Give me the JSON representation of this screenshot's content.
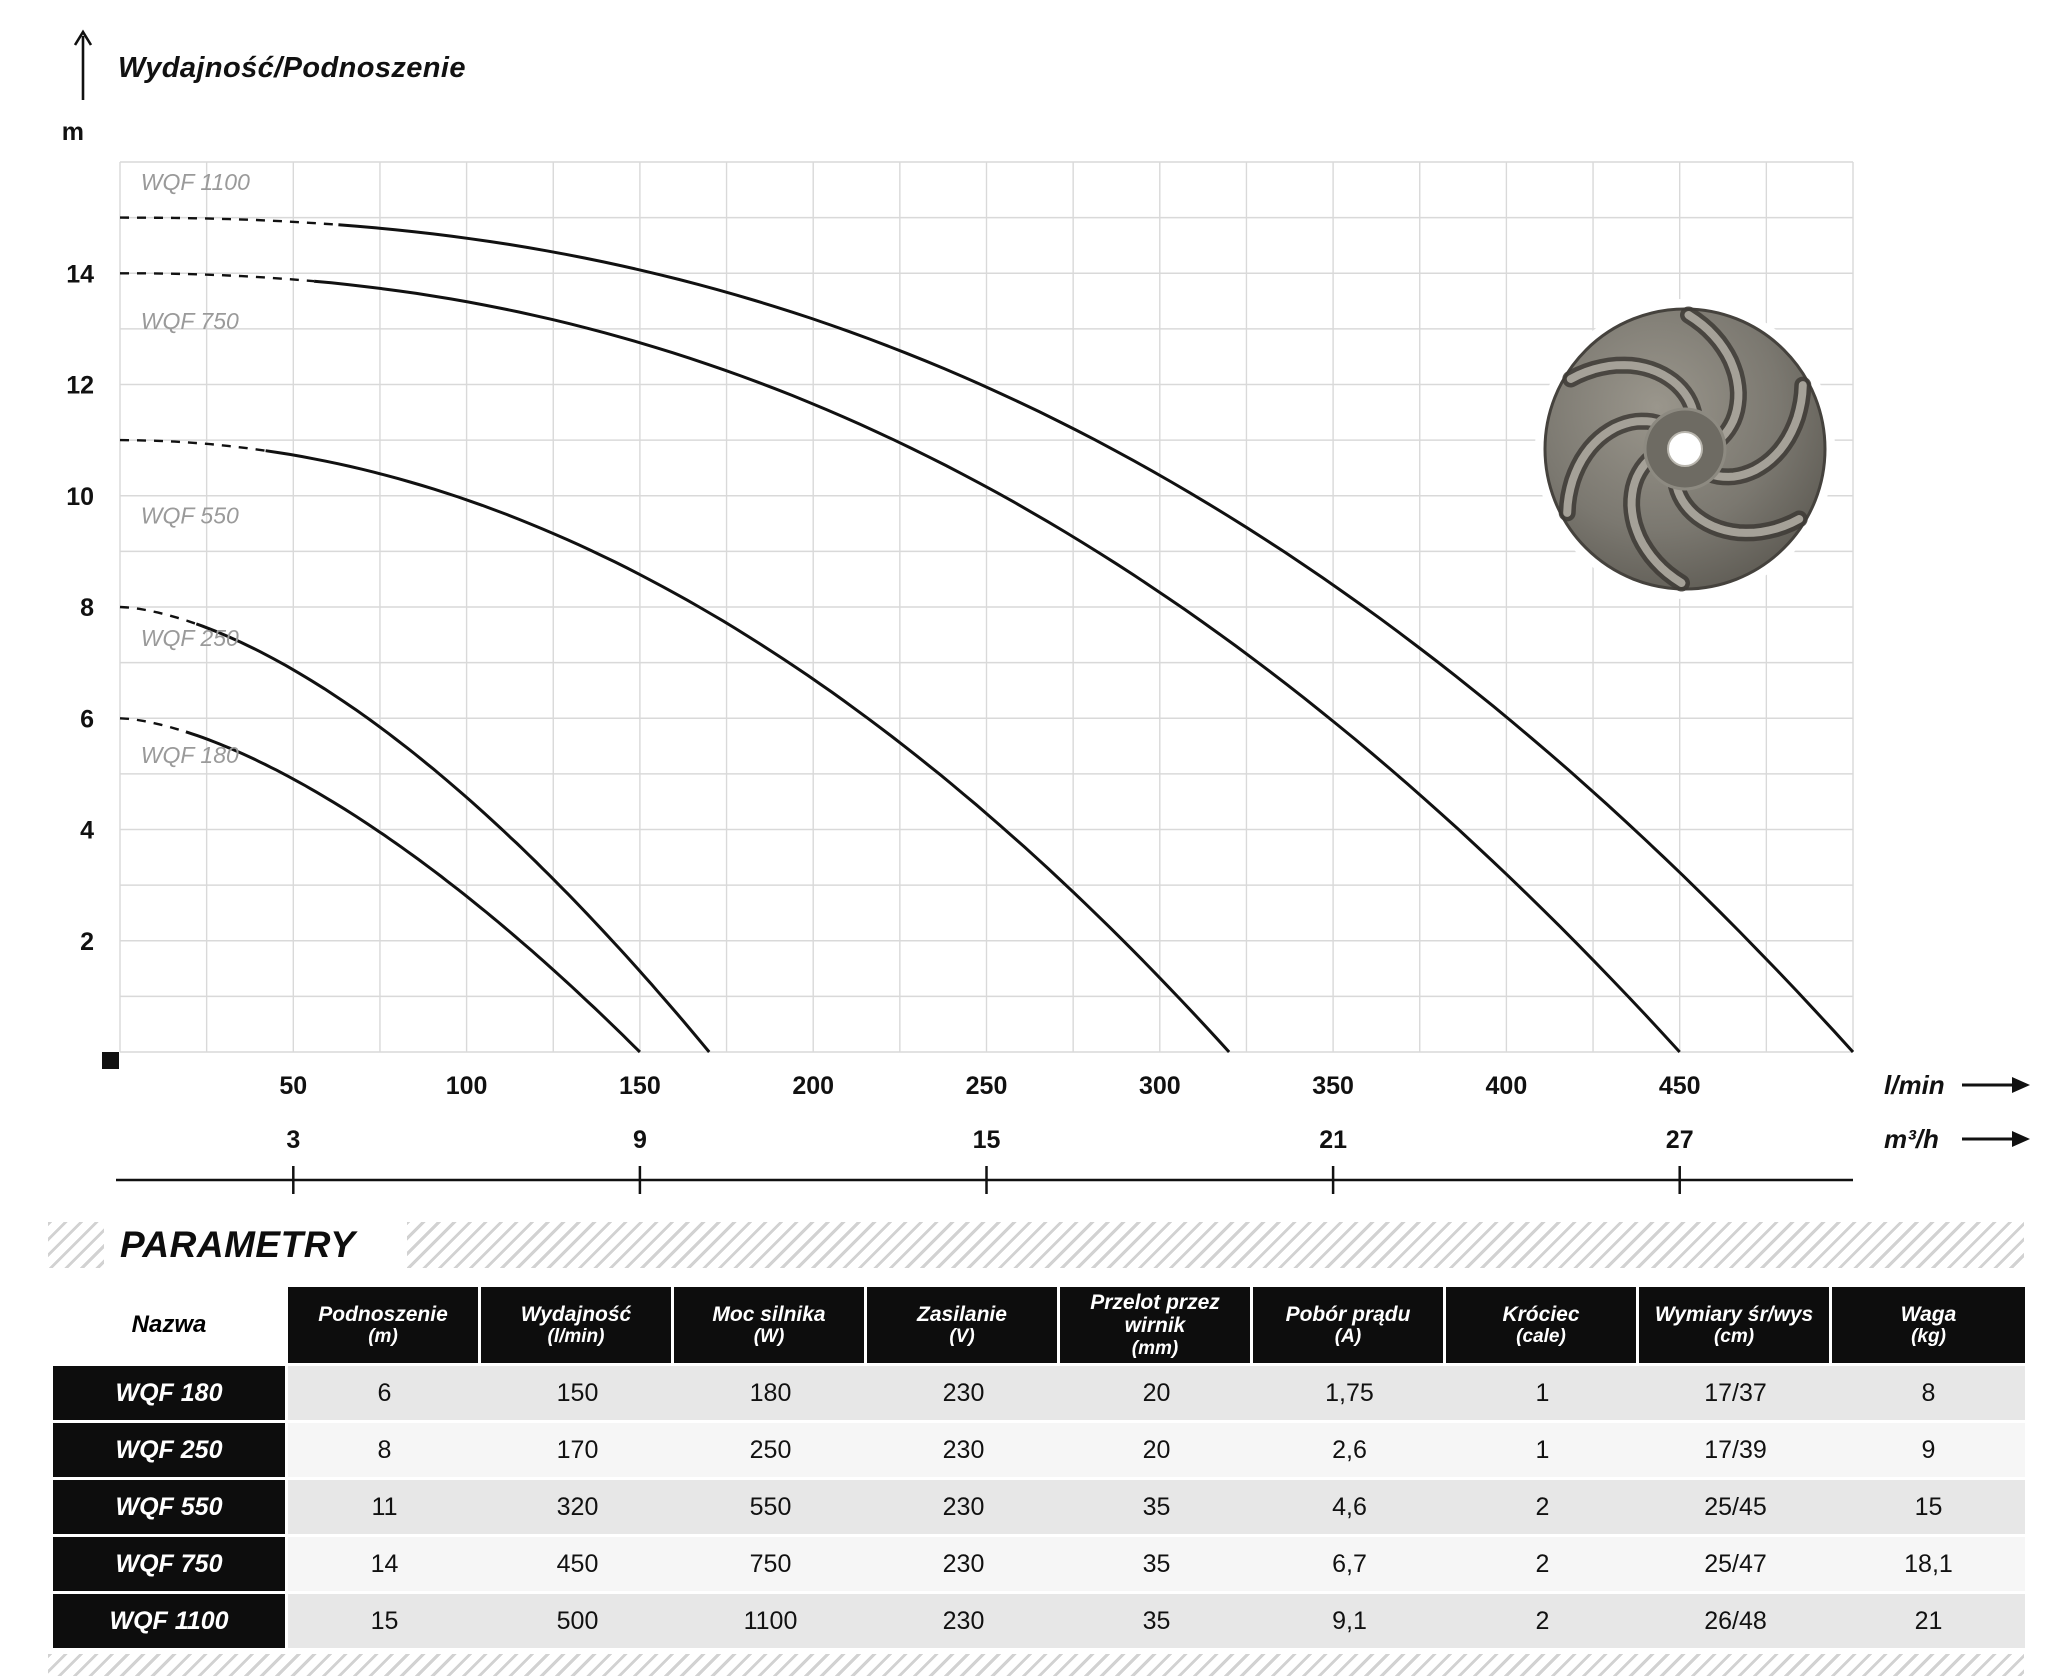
{
  "chart": {
    "title": "Wydajność/Podnoszenie"
  },
  "chart_data": {
    "type": "line",
    "title": "Wydajność/Podnoszenie",
    "ylabel": "m",
    "xlabel_primary": "l/min",
    "xlabel_secondary": "m³/h",
    "xlim": [
      0,
      500
    ],
    "ylim": [
      0,
      16
    ],
    "y_ticks": [
      2,
      4,
      6,
      8,
      10,
      12,
      14
    ],
    "x_ticks_lmin": [
      50,
      100,
      150,
      200,
      250,
      300,
      350,
      400,
      450
    ],
    "x_ticks_m3h": [
      3,
      9,
      15,
      21,
      27
    ],
    "lmin_per_m3h": 16.6667,
    "grid": true,
    "grid_step_x": 25,
    "grid_step_y": 1,
    "grid_color": "#d9d9d9",
    "curve_color": "#111111",
    "curve_label_color": "#9a9a9a",
    "legend_position": "labels-on-curves-left",
    "series": [
      {
        "name": "WQF 1100",
        "shutoff_head_m": 15,
        "max_flow_lmin": 500,
        "dashed_until_lmin": 63,
        "label_q": 6,
        "label_h": 15.5,
        "points": [
          [
            0,
            15
          ],
          [
            125,
            14.1
          ],
          [
            250,
            11.8
          ],
          [
            375,
            7.2
          ],
          [
            500,
            0
          ]
        ]
      },
      {
        "name": "WQF 750",
        "shutoff_head_m": 14,
        "max_flow_lmin": 450,
        "dashed_until_lmin": 56,
        "label_q": 6,
        "label_h": 13.0,
        "points": [
          [
            0,
            14
          ],
          [
            112,
            13.2
          ],
          [
            225,
            10.9
          ],
          [
            338,
            6.6
          ],
          [
            450,
            0
          ]
        ]
      },
      {
        "name": "WQF 550",
        "shutoff_head_m": 11,
        "max_flow_lmin": 320,
        "dashed_until_lmin": 42,
        "label_q": 6,
        "label_h": 9.5,
        "points": [
          [
            0,
            11
          ],
          [
            80,
            10.2
          ],
          [
            160,
            8.2
          ],
          [
            240,
            4.9
          ],
          [
            320,
            0
          ]
        ]
      },
      {
        "name": "WQF 250",
        "shutoff_head_m": 8,
        "max_flow_lmin": 170,
        "dashed_until_lmin": 22,
        "label_q": 6,
        "label_h": 7.3,
        "points": [
          [
            0,
            8
          ],
          [
            42,
            7.2
          ],
          [
            85,
            5.4
          ],
          [
            128,
            3.0
          ],
          [
            170,
            0
          ]
        ]
      },
      {
        "name": "WQF 180",
        "shutoff_head_m": 6,
        "max_flow_lmin": 150,
        "dashed_until_lmin": 19,
        "label_q": 6,
        "label_h": 5.2,
        "points": [
          [
            0,
            6
          ],
          [
            38,
            5.4
          ],
          [
            75,
            4.1
          ],
          [
            112,
            2.2
          ],
          [
            150,
            0
          ]
        ]
      }
    ]
  },
  "parameters_section": {
    "heading": "PARAMETRY"
  },
  "table": {
    "columns": [
      {
        "label": "Nazwa",
        "unit": ""
      },
      {
        "label": "Podnoszenie",
        "unit": "(m)"
      },
      {
        "label": "Wydajność",
        "unit": "(l/min)"
      },
      {
        "label": "Moc silnika",
        "unit": "(W)"
      },
      {
        "label": "Zasilanie",
        "unit": "(V)"
      },
      {
        "label": "Przelot przez wirnik",
        "unit": "(mm)"
      },
      {
        "label": "Pobór prądu",
        "unit": "(A)"
      },
      {
        "label": "Króciec",
        "unit": "(cale)"
      },
      {
        "label": "Wymiary śr/wys",
        "unit": "(cm)"
      },
      {
        "label": "Waga",
        "unit": "(kg)"
      }
    ],
    "rows": [
      {
        "name": "WQF 180",
        "values": [
          "6",
          "150",
          "180",
          "230",
          "20",
          "1,75",
          "1",
          "17/37",
          "8"
        ]
      },
      {
        "name": "WQF 250",
        "values": [
          "8",
          "170",
          "250",
          "230",
          "20",
          "2,6",
          "1",
          "17/39",
          "9"
        ]
      },
      {
        "name": "WQF 550",
        "values": [
          "11",
          "320",
          "550",
          "230",
          "35",
          "4,6",
          "2",
          "25/45",
          "15"
        ]
      },
      {
        "name": "WQF 750",
        "values": [
          "14",
          "450",
          "750",
          "230",
          "35",
          "6,7",
          "2",
          "25/47",
          "18,1"
        ]
      },
      {
        "name": "WQF 1100",
        "values": [
          "15",
          "500",
          "1100",
          "230",
          "35",
          "9,1",
          "2",
          "26/48",
          "21"
        ]
      }
    ]
  }
}
